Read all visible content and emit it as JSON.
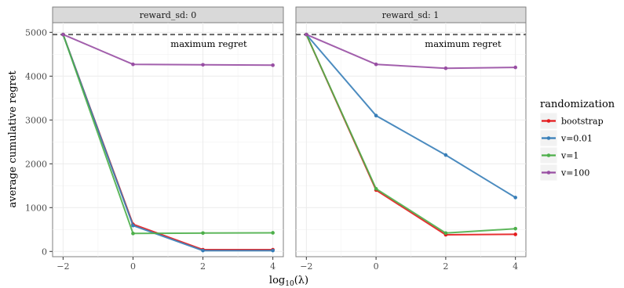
{
  "chart_data": {
    "type": "line",
    "ylabel": "average cumulative regret",
    "xlabel_base": "log",
    "xlabel_sub": "10",
    "xlabel_arg": "(λ)",
    "xticks": [
      -2,
      0,
      2,
      4
    ],
    "xtick_labels": [
      "−2",
      "0",
      "2",
      "4"
    ],
    "yticks": [
      0,
      1000,
      2000,
      3000,
      4000,
      5000
    ],
    "xlim": [
      -2.3,
      4.3
    ],
    "ylim": [
      -120,
      5220
    ],
    "max_regret": 4950,
    "annotation": "maximum regret",
    "legend": {
      "title": "randomization",
      "entries": [
        "bootstrap",
        "v=0.01",
        "v=1",
        "v=100"
      ]
    },
    "colors": {
      "bootstrap": "#e41a1c",
      "v=0.01": "#377eb8",
      "v=1": "#4daf4a",
      "v=100": "#984ea3"
    },
    "panels": [
      {
        "strip": "reward_sd: 0",
        "x": [
          -2,
          0,
          2,
          4
        ],
        "series": [
          {
            "name": "bootstrap",
            "values": [
              4950,
              620,
              40,
              40
            ]
          },
          {
            "name": "v=0.01",
            "values": [
              4950,
              590,
              20,
              20
            ]
          },
          {
            "name": "v=1",
            "values": [
              4950,
              410,
              420,
              425
            ]
          },
          {
            "name": "v=100",
            "values": [
              4950,
              4270,
              4260,
              4250
            ]
          }
        ]
      },
      {
        "strip": "reward_sd: 1",
        "x": [
          -2,
          0,
          2,
          4
        ],
        "series": [
          {
            "name": "bootstrap",
            "values": [
              4950,
              1400,
              380,
              390
            ]
          },
          {
            "name": "v=0.01",
            "values": [
              4950,
              3100,
              2200,
              1230
            ]
          },
          {
            "name": "v=1",
            "values": [
              4950,
              1430,
              420,
              520
            ]
          },
          {
            "name": "v=100",
            "values": [
              4950,
              4270,
              4180,
              4200
            ]
          }
        ]
      }
    ]
  }
}
